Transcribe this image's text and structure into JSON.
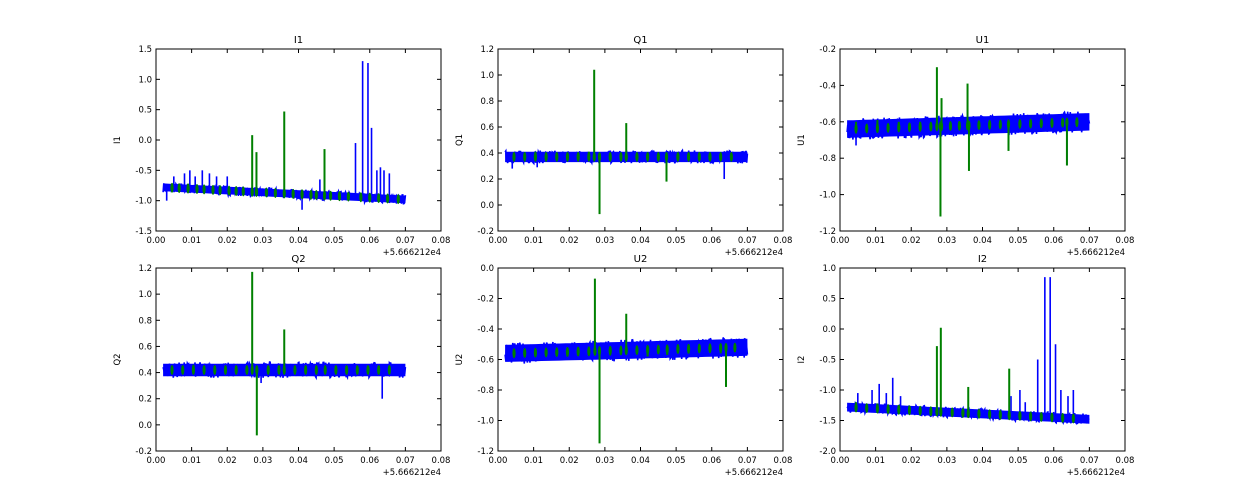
{
  "figure": {
    "background": "#ffffff",
    "colors": {
      "noise_band": "#0000ff",
      "spikes": "#008000"
    }
  },
  "chart_data": [
    {
      "type": "line",
      "title": "I1",
      "ylabel": "I1",
      "xlabel": "",
      "x_offset_label": "+5.666212e4",
      "xlim": [
        0.0,
        0.08
      ],
      "ylim": [
        -1.5,
        1.5
      ],
      "xticks": [
        "0.00",
        "0.01",
        "0.02",
        "0.03",
        "0.04",
        "0.05",
        "0.06",
        "0.07",
        "0.08"
      ],
      "yticks": [
        "-1.5",
        "-1.0",
        "-0.5",
        "0.0",
        "0.5",
        "1.0",
        "1.5"
      ],
      "band": {
        "x": [
          0.002,
          0.07
        ],
        "center_start": -0.78,
        "center_end": -0.98,
        "half_width": 0.08
      },
      "series": [
        {
          "color": "#0000ff",
          "x": [
            0.003,
            0.005,
            0.008,
            0.0095,
            0.011,
            0.013,
            0.015,
            0.017,
            0.02,
            0.041,
            0.046,
            0.056,
            0.058,
            0.0595,
            0.0605,
            0.062,
            0.063,
            0.064,
            0.0655,
            0.0675
          ],
          "y": [
            -1.0,
            -0.6,
            -0.55,
            -0.5,
            -0.6,
            -0.5,
            -0.55,
            -0.6,
            -0.6,
            -1.15,
            -0.65,
            -0.05,
            1.3,
            1.27,
            0.2,
            -0.5,
            -0.45,
            -0.5,
            -0.55,
            -1.05
          ]
        },
        {
          "color": "#008000",
          "x": [
            0.0045,
            0.0065,
            0.009,
            0.0115,
            0.0135,
            0.016,
            0.018,
            0.0205,
            0.0225,
            0.0245,
            0.027,
            0.0282,
            0.031,
            0.0335,
            0.036,
            0.0385,
            0.041,
            0.0435,
            0.045,
            0.0473,
            0.049,
            0.0515,
            0.054,
            0.0575,
            0.06,
            0.0625,
            0.065,
            0.068
          ],
          "y": [
            -0.75,
            -0.8,
            -0.72,
            -0.8,
            -0.76,
            -0.83,
            -0.78,
            -0.86,
            -0.82,
            -0.88,
            0.08,
            -0.2,
            -0.9,
            -0.86,
            0.47,
            -0.9,
            -0.93,
            -0.88,
            -0.92,
            -0.15,
            -0.95,
            -0.93,
            -0.97,
            -0.95,
            -0.99,
            -0.96,
            -1.0,
            -0.98
          ]
        }
      ]
    },
    {
      "type": "line",
      "title": "Q1",
      "ylabel": "Q1",
      "xlabel": "",
      "x_offset_label": "+5.666212e4",
      "xlim": [
        0.0,
        0.08
      ],
      "ylim": [
        -0.2,
        1.2
      ],
      "xticks": [
        "0.00",
        "0.01",
        "0.02",
        "0.03",
        "0.04",
        "0.05",
        "0.06",
        "0.07",
        "0.08"
      ],
      "yticks": [
        "-0.2",
        "0.0",
        "0.2",
        "0.4",
        "0.6",
        "0.8",
        "1.0",
        "1.2"
      ],
      "band": {
        "x": [
          0.002,
          0.07
        ],
        "center_start": 0.37,
        "center_end": 0.37,
        "half_width": 0.05
      },
      "series": [
        {
          "color": "#0000ff",
          "x": [
            0.004,
            0.011,
            0.0635
          ],
          "y": [
            0.28,
            0.29,
            0.2
          ]
        },
        {
          "color": "#008000",
          "x": [
            0.0045,
            0.0075,
            0.0105,
            0.0135,
            0.0165,
            0.0195,
            0.0225,
            0.0255,
            0.027,
            0.0285,
            0.0315,
            0.0345,
            0.036,
            0.039,
            0.042,
            0.045,
            0.0473,
            0.0505,
            0.0535,
            0.0565,
            0.0595,
            0.0625,
            0.0655
          ],
          "y": [
            0.4,
            0.38,
            0.41,
            0.39,
            0.4,
            0.38,
            0.4,
            0.41,
            1.04,
            -0.07,
            0.38,
            0.4,
            0.63,
            0.38,
            0.4,
            0.39,
            0.18,
            0.4,
            0.38,
            0.39,
            0.4,
            0.38,
            0.39
          ]
        }
      ]
    },
    {
      "type": "line",
      "title": "U1",
      "ylabel": "U1",
      "xlabel": "",
      "x_offset_label": "+5.666212e4",
      "xlim": [
        0.0,
        0.08
      ],
      "ylim": [
        -1.2,
        -0.2
      ],
      "xticks": [
        "0.00",
        "0.01",
        "0.02",
        "0.03",
        "0.04",
        "0.05",
        "0.06",
        "0.07",
        "0.08"
      ],
      "yticks": [
        "-1.2",
        "-1.0",
        "-0.8",
        "-0.6",
        "-0.4",
        "-0.2"
      ],
      "band": {
        "x": [
          0.002,
          0.07
        ],
        "center_start": -0.64,
        "center_end": -0.6,
        "half_width": 0.06
      },
      "series": [
        {
          "color": "#0000ff",
          "x": [
            0.0045,
            0.0637
          ],
          "y": [
            -0.73,
            -0.84
          ]
        },
        {
          "color": "#008000",
          "x": [
            0.0045,
            0.0075,
            0.0105,
            0.0135,
            0.0165,
            0.0195,
            0.0225,
            0.0255,
            0.0272,
            0.0282,
            0.0285,
            0.031,
            0.0335,
            0.0358,
            0.0362,
            0.039,
            0.042,
            0.045,
            0.0473,
            0.0505,
            0.0535,
            0.0565,
            0.0595,
            0.0625,
            0.0637,
            0.0665
          ],
          "y": [
            -0.6,
            -0.63,
            -0.59,
            -0.62,
            -0.6,
            -0.63,
            -0.6,
            -0.62,
            -0.3,
            -1.12,
            -0.47,
            -0.62,
            -0.6,
            -0.39,
            -0.87,
            -0.6,
            -0.63,
            -0.6,
            -0.76,
            -0.6,
            -0.62,
            -0.6,
            -0.62,
            -0.6,
            -0.84,
            -0.61
          ]
        }
      ]
    },
    {
      "type": "line",
      "title": "Q2",
      "ylabel": "Q2",
      "xlabel": "",
      "x_offset_label": "+5.666212e4",
      "xlim": [
        0.0,
        0.08
      ],
      "ylim": [
        -0.2,
        1.2
      ],
      "xticks": [
        "0.00",
        "0.01",
        "0.02",
        "0.03",
        "0.04",
        "0.05",
        "0.06",
        "0.07",
        "0.08"
      ],
      "yticks": [
        "-0.2",
        "0.0",
        "0.2",
        "0.4",
        "0.6",
        "0.8",
        "1.0",
        "1.2"
      ],
      "band": {
        "x": [
          0.002,
          0.07
        ],
        "center_start": 0.42,
        "center_end": 0.42,
        "half_width": 0.06
      },
      "series": [
        {
          "color": "#0000ff",
          "x": [
            0.0295,
            0.0635
          ],
          "y": [
            0.32,
            0.2
          ]
        },
        {
          "color": "#008000",
          "x": [
            0.0045,
            0.0075,
            0.0105,
            0.0135,
            0.0165,
            0.0195,
            0.0225,
            0.0255,
            0.027,
            0.0283,
            0.0315,
            0.0345,
            0.036,
            0.039,
            0.042,
            0.045,
            0.0475,
            0.0505,
            0.0535,
            0.0565,
            0.0595,
            0.0625,
            0.0655
          ],
          "y": [
            0.45,
            0.42,
            0.46,
            0.43,
            0.45,
            0.42,
            0.45,
            0.43,
            1.17,
            -0.08,
            0.43,
            0.45,
            0.73,
            0.42,
            0.45,
            0.43,
            0.44,
            0.42,
            0.45,
            0.43,
            0.42,
            0.45,
            0.42
          ]
        }
      ]
    },
    {
      "type": "line",
      "title": "U2",
      "ylabel": "U2",
      "xlabel": "",
      "x_offset_label": "+5.666212e4",
      "xlim": [
        0.0,
        0.08
      ],
      "ylim": [
        -1.2,
        0.0
      ],
      "xticks": [
        "0.00",
        "0.01",
        "0.02",
        "0.03",
        "0.04",
        "0.05",
        "0.06",
        "0.07",
        "0.08"
      ],
      "yticks": [
        "-1.2",
        "-1.0",
        "-0.8",
        "-0.6",
        "-0.4",
        "-0.2",
        "0.0"
      ],
      "band": {
        "x": [
          0.002,
          0.07
        ],
        "center_start": -0.56,
        "center_end": -0.52,
        "half_width": 0.07
      },
      "series": [
        {
          "color": "#008000",
          "x": [
            0.0045,
            0.0075,
            0.0105,
            0.0135,
            0.0165,
            0.0195,
            0.0225,
            0.0255,
            0.0272,
            0.0285,
            0.0315,
            0.0345,
            0.036,
            0.039,
            0.042,
            0.045,
            0.0475,
            0.0505,
            0.0535,
            0.0565,
            0.0595,
            0.0625,
            0.064,
            0.0665
          ],
          "y": [
            -0.55,
            -0.58,
            -0.54,
            -0.57,
            -0.55,
            -0.58,
            -0.55,
            -0.57,
            -0.07,
            -1.15,
            -0.56,
            -0.54,
            -0.3,
            -0.55,
            -0.58,
            -0.55,
            -0.57,
            -0.54,
            -0.56,
            -0.55,
            -0.53,
            -0.56,
            -0.78,
            -0.55
          ]
        }
      ]
    },
    {
      "type": "line",
      "title": "I2",
      "ylabel": "I2",
      "xlabel": "",
      "x_offset_label": "+5.666212e4",
      "xlim": [
        0.0,
        0.08
      ],
      "ylim": [
        -2.0,
        1.0
      ],
      "xticks": [
        "0.00",
        "0.01",
        "0.02",
        "0.03",
        "0.04",
        "0.05",
        "0.06",
        "0.07",
        "0.08"
      ],
      "yticks": [
        "-2.0",
        "-1.5",
        "-1.0",
        "-0.5",
        "0.0",
        "0.5",
        "1.0"
      ],
      "band": {
        "x": [
          0.002,
          0.07
        ],
        "center_start": -1.28,
        "center_end": -1.48,
        "half_width": 0.09
      },
      "series": [
        {
          "color": "#0000ff",
          "x": [
            0.005,
            0.009,
            0.011,
            0.013,
            0.0148,
            0.017,
            0.048,
            0.0505,
            0.052,
            0.0555,
            0.0575,
            0.059,
            0.0605,
            0.062,
            0.064,
            0.0655
          ],
          "y": [
            -1.05,
            -1.0,
            -0.9,
            -1.05,
            -0.8,
            -1.1,
            -1.1,
            -1.0,
            -1.2,
            -0.5,
            0.85,
            0.85,
            -0.25,
            -1.0,
            -1.1,
            -1.0
          ]
        },
        {
          "color": "#008000",
          "x": [
            0.0045,
            0.0075,
            0.0105,
            0.0135,
            0.0165,
            0.0195,
            0.0225,
            0.0255,
            0.0272,
            0.0283,
            0.0315,
            0.0345,
            0.036,
            0.039,
            0.042,
            0.045,
            0.0475,
            0.0505,
            0.0535,
            0.0565,
            0.0595,
            0.0625,
            0.0655
          ],
          "y": [
            -1.2,
            -1.26,
            -1.22,
            -1.28,
            -1.25,
            -1.3,
            -1.28,
            -1.32,
            -0.28,
            0.02,
            -1.34,
            -1.32,
            -0.95,
            -1.36,
            -1.38,
            -1.37,
            -0.65,
            -1.4,
            -1.42,
            -1.38,
            -1.45,
            -1.43,
            -1.47
          ]
        }
      ]
    }
  ]
}
